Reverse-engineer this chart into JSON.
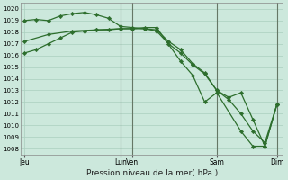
{
  "background_color": "#cce8dc",
  "grid_color": "#aacfbf",
  "line_color": "#2d6e2d",
  "marker_color": "#2d6e2d",
  "xlabel_text": "Pression niveau de la mer( hPa )",
  "ylim": [
    1007.5,
    1020.5
  ],
  "yticks": [
    1008,
    1009,
    1010,
    1011,
    1012,
    1013,
    1014,
    1015,
    1016,
    1017,
    1018,
    1019,
    1020
  ],
  "x_tick_labels": [
    "Jeu",
    "",
    "",
    "",
    "",
    "",
    "",
    "",
    "Lun",
    "Ven",
    "",
    "",
    "",
    "",
    "",
    "",
    "Sam",
    "",
    "",
    "",
    "",
    "Dim"
  ],
  "x_tick_positions": [
    0,
    1,
    2,
    3,
    4,
    5,
    6,
    7,
    8,
    9,
    10,
    11,
    12,
    13,
    14,
    15,
    16,
    17,
    18,
    19,
    20,
    21
  ],
  "xlim": [
    -0.3,
    21.5
  ],
  "vline_positions": [
    8,
    9,
    16,
    21
  ],
  "series1": {
    "x": [
      0,
      1,
      2,
      3,
      4,
      5,
      6,
      7,
      8,
      9,
      10,
      11,
      12,
      13,
      14,
      15,
      16,
      17,
      18,
      19,
      20,
      21
    ],
    "y": [
      1019.0,
      1019.1,
      1019.0,
      1019.4,
      1019.6,
      1019.7,
      1019.5,
      1019.2,
      1018.5,
      1018.4,
      1018.3,
      1018.1,
      1017.0,
      1016.2,
      1015.2,
      1014.4,
      1013.0,
      1012.4,
      1012.8,
      1010.5,
      1008.2,
      1011.8
    ]
  },
  "series2": {
    "x": [
      0,
      1,
      2,
      3,
      4,
      5,
      6,
      7,
      8,
      9,
      10,
      11,
      12,
      13,
      14,
      15,
      16,
      17,
      18,
      19,
      20,
      21
    ],
    "y": [
      1016.2,
      1016.5,
      1017.0,
      1017.5,
      1018.0,
      1018.1,
      1018.2,
      1018.2,
      1018.3,
      1018.3,
      1018.3,
      1018.2,
      1017.2,
      1016.5,
      1015.3,
      1014.5,
      1013.0,
      1012.2,
      1011.0,
      1009.5,
      1008.5,
      1011.8
    ]
  },
  "series3": {
    "x": [
      0,
      2,
      4,
      6,
      8,
      9,
      10,
      11,
      13,
      14,
      15,
      16,
      18,
      19,
      20,
      21
    ],
    "y": [
      1017.2,
      1017.8,
      1018.1,
      1018.2,
      1018.3,
      1018.3,
      1018.4,
      1018.4,
      1015.5,
      1014.3,
      1012.0,
      1012.8,
      1009.5,
      1008.2,
      1008.2,
      1011.8
    ]
  }
}
